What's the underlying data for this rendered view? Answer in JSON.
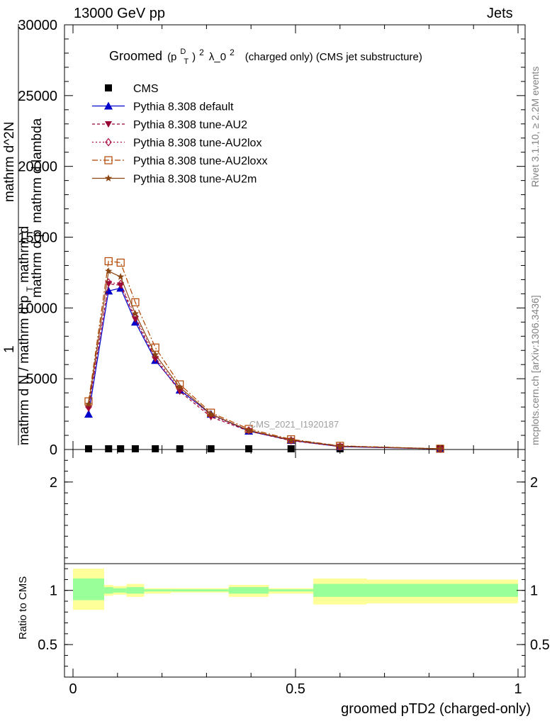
{
  "header": {
    "left": "13000 GeV pp",
    "right": "Jets"
  },
  "side_labels": {
    "rivet": "Rivet 3.1.10, ≥ 2.2M events",
    "mcplots": "mcplots.cern.ch [arXiv:1306.3436]"
  },
  "watermark": "CMS_2021_I1920187",
  "chart_data": [
    {
      "type": "line",
      "title": {
        "groomed": "Groomed",
        "p": "(p",
        "sup": "D",
        "sub": "T",
        "close": ")",
        "pow": "2",
        "lambda": "λ_0",
        "lambda_pow": "2",
        "tail": "(charged only) (CMS jet substructure)"
      },
      "ylabel": {
        "one": "1",
        "line1": "mathrm d N / mathrm d p",
        "sub": "T",
        "line1b": " mathrm d",
        "line2": "mathrm d^2N",
        "line3": "mathrm d p",
        "line3b": "mathrm d lambda"
      },
      "xlim": [
        0,
        1
      ],
      "ylim": [
        0,
        30000
      ],
      "yticks": [
        {
          "v": 0,
          "label": "0"
        },
        {
          "v": 5000,
          "label": "5000"
        },
        {
          "v": 10000,
          "label": "10000"
        },
        {
          "v": 15000,
          "label": "15000"
        },
        {
          "v": 20000,
          "label": "20000"
        },
        {
          "v": 25000,
          "label": "25000"
        },
        {
          "v": 30000,
          "label": "30000"
        }
      ],
      "x": [
        0.035,
        0.08,
        0.107,
        0.14,
        0.185,
        0.24,
        0.31,
        0.395,
        0.49,
        0.6,
        0.825
      ],
      "series": [
        {
          "name": "CMS",
          "color": "#000000",
          "marker": "square-filled",
          "dash": "",
          "values": [
            0,
            0,
            0,
            0,
            0,
            0,
            0,
            0,
            0,
            0,
            0
          ]
        },
        {
          "name": "Pythia 8.308 default",
          "color": "#0000cc",
          "marker": "triangle-up-filled",
          "dash": "",
          "values": [
            2500,
            11200,
            11400,
            9000,
            6300,
            4200,
            2500,
            1300,
            650,
            200,
            40
          ]
        },
        {
          "name": "Pythia 8.308 tune-AU2",
          "color": "#990033",
          "marker": "triangle-down-filled",
          "dash": "4,3",
          "values": [
            2900,
            11700,
            11600,
            9200,
            6400,
            4100,
            2300,
            1300,
            620,
            210,
            40
          ]
        },
        {
          "name": "Pythia 8.308 tune-AU2lox",
          "color": "#aa1144",
          "marker": "diamond-open",
          "dash": "2,3",
          "values": [
            3000,
            11800,
            11700,
            9400,
            6500,
            4300,
            2400,
            1350,
            640,
            215,
            42
          ]
        },
        {
          "name": "Pythia 8.308 tune-AU2loxx",
          "color": "#b34400",
          "marker": "square-open",
          "dash": "8,3,2,3",
          "values": [
            3400,
            13300,
            13200,
            10400,
            7200,
            4600,
            2600,
            1450,
            720,
            260,
            55
          ]
        },
        {
          "name": "Pythia 8.308 tune-AU2m",
          "color": "#8b4513",
          "marker": "star",
          "dash": "",
          "values": [
            3200,
            12600,
            12200,
            9600,
            6700,
            4400,
            2500,
            1350,
            680,
            240,
            50
          ]
        }
      ]
    },
    {
      "type": "area",
      "ylabel": "Ratio to CMS",
      "xlabel": "groomed pTD2 (charged-only)",
      "xlim": [
        0,
        1
      ],
      "ylim": [
        0.2,
        2.3
      ],
      "yticks": [
        {
          "v": 0.5,
          "label": "0.5"
        },
        {
          "v": 1,
          "label": "1"
        },
        {
          "v": 2,
          "label": "2"
        }
      ],
      "xticks": [
        {
          "v": 0,
          "label": "0"
        },
        {
          "v": 0.5,
          "label": "0.5"
        },
        {
          "v": 1,
          "label": "1"
        }
      ],
      "bins": [
        {
          "x0": 0.0,
          "x1": 0.07,
          "in_lo": 0.91,
          "in_hi": 1.11,
          "out_lo": 0.82,
          "out_hi": 1.2
        },
        {
          "x0": 0.07,
          "x1": 0.09,
          "in_lo": 0.97,
          "in_hi": 1.03,
          "out_lo": 0.95,
          "out_hi": 1.05
        },
        {
          "x0": 0.09,
          "x1": 0.12,
          "in_lo": 0.98,
          "in_hi": 1.02,
          "out_lo": 0.96,
          "out_hi": 1.04
        },
        {
          "x0": 0.12,
          "x1": 0.16,
          "in_lo": 0.97,
          "in_hi": 1.03,
          "out_lo": 0.94,
          "out_hi": 1.06
        },
        {
          "x0": 0.16,
          "x1": 0.22,
          "in_lo": 0.99,
          "in_hi": 1.01,
          "out_lo": 0.97,
          "out_hi": 1.02
        },
        {
          "x0": 0.22,
          "x1": 0.35,
          "in_lo": 0.99,
          "in_hi": 1.01,
          "out_lo": 0.98,
          "out_hi": 1.02
        },
        {
          "x0": 0.35,
          "x1": 0.44,
          "in_lo": 0.97,
          "in_hi": 1.03,
          "out_lo": 0.94,
          "out_hi": 1.05
        },
        {
          "x0": 0.44,
          "x1": 0.54,
          "in_lo": 0.99,
          "in_hi": 1.01,
          "out_lo": 0.97,
          "out_hi": 1.02
        },
        {
          "x0": 0.54,
          "x1": 0.66,
          "in_lo": 0.94,
          "in_hi": 1.06,
          "out_lo": 0.87,
          "out_hi": 1.11
        },
        {
          "x0": 0.66,
          "x1": 1.0,
          "in_lo": 0.94,
          "in_hi": 1.06,
          "out_lo": 0.88,
          "out_hi": 1.1
        }
      ],
      "colors": {
        "inner": "#99ff99",
        "outer": "#ffff99"
      }
    }
  ]
}
